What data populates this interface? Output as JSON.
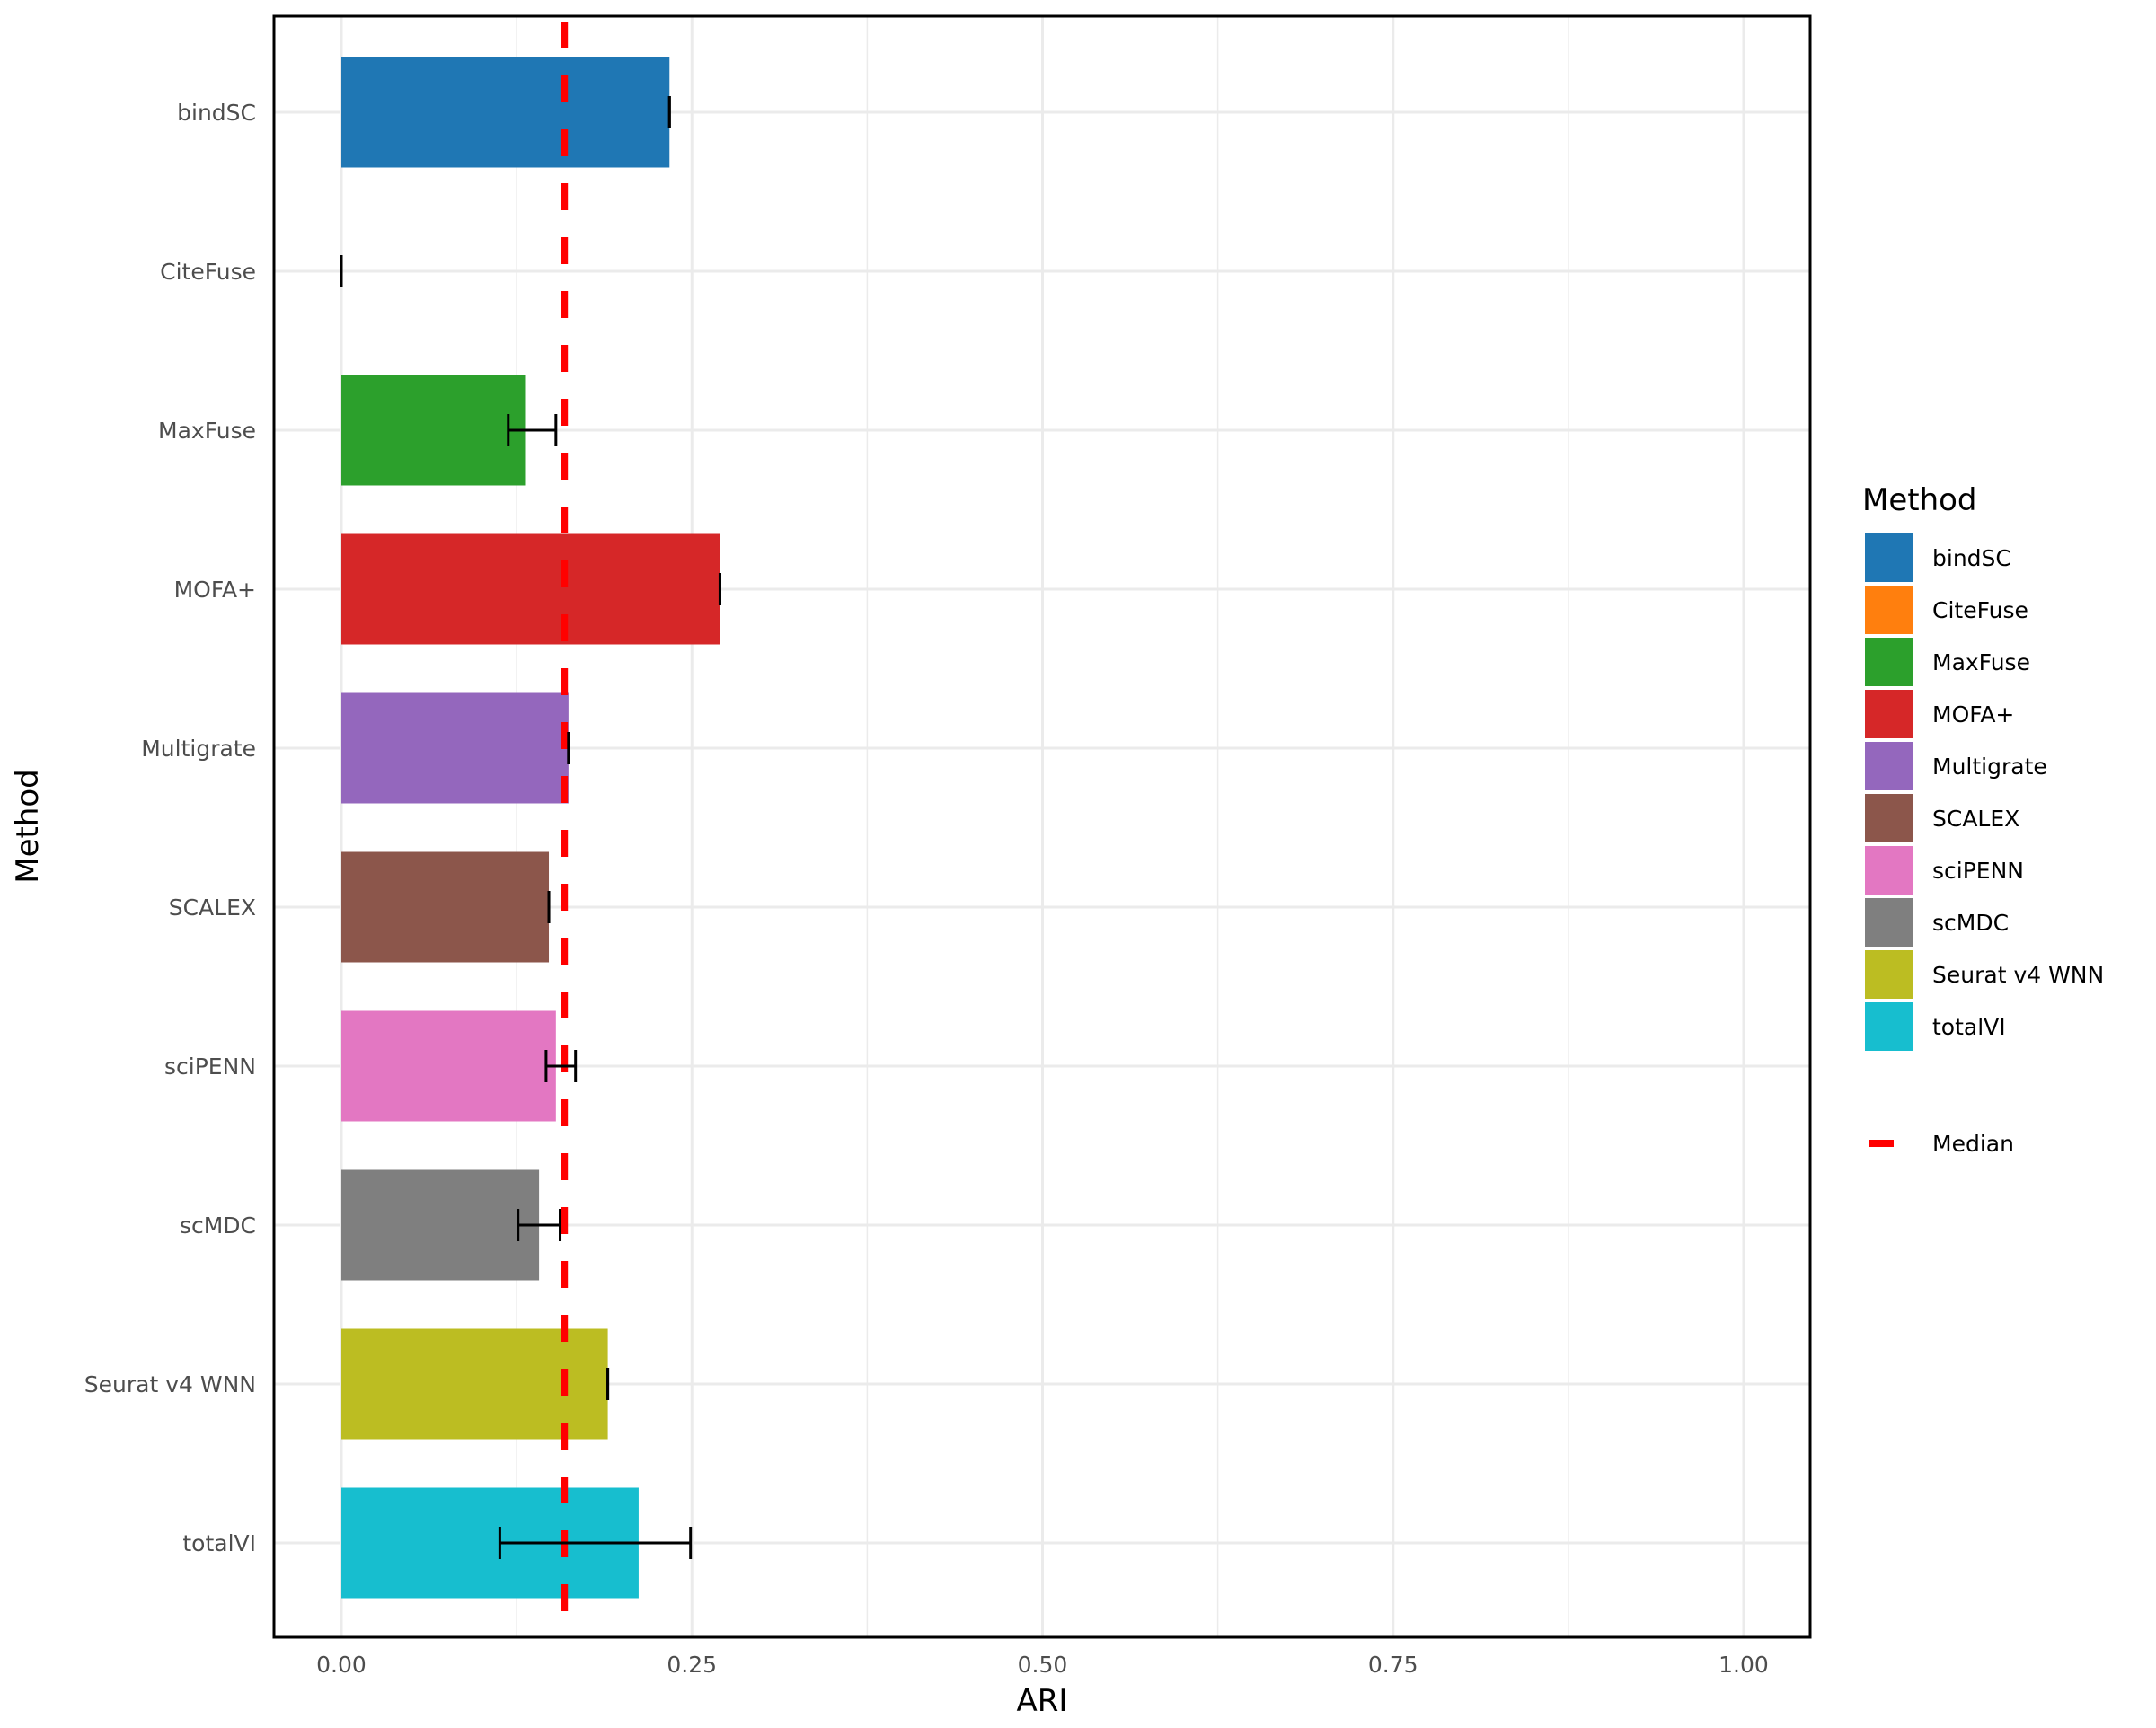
{
  "chart_data": {
    "type": "bar",
    "orientation": "horizontal",
    "xlabel": "ARI",
    "ylabel": "Method",
    "xlim": [
      -0.048,
      1.048
    ],
    "xticks": [
      0,
      0.25,
      0.5,
      0.75,
      1.0
    ],
    "xtick_labels": [
      "0.00",
      "0.25",
      "0.50",
      "0.75",
      "1.00"
    ],
    "grid": true,
    "categories": [
      "bindSC",
      "CiteFuse",
      "MaxFuse",
      "MOFA+",
      "Multigrate",
      "SCALEX",
      "sciPENN",
      "scMDC",
      "Seurat v4 WNN",
      "totalVI"
    ],
    "values": [
      0.234,
      0.0,
      0.131,
      0.27,
      0.162,
      0.148,
      0.153,
      0.141,
      0.19,
      0.212
    ],
    "error_low": [
      0.234,
      0.0,
      0.119,
      0.27,
      0.162,
      0.148,
      0.146,
      0.126,
      0.19,
      0.113
    ],
    "error_high": [
      0.234,
      0.0,
      0.153,
      0.27,
      0.162,
      0.148,
      0.167,
      0.156,
      0.19,
      0.249
    ],
    "colors": [
      "#1f77b4",
      "#ff7f0e",
      "#2ca02c",
      "#d62728",
      "#9467bd",
      "#8c564b",
      "#e377c2",
      "#7f7f7f",
      "#bcbd22",
      "#17becf"
    ],
    "median": 0.159,
    "median_color": "#ff0000",
    "legend": {
      "title": "Method",
      "placement": "right",
      "median_label": "Median"
    }
  }
}
